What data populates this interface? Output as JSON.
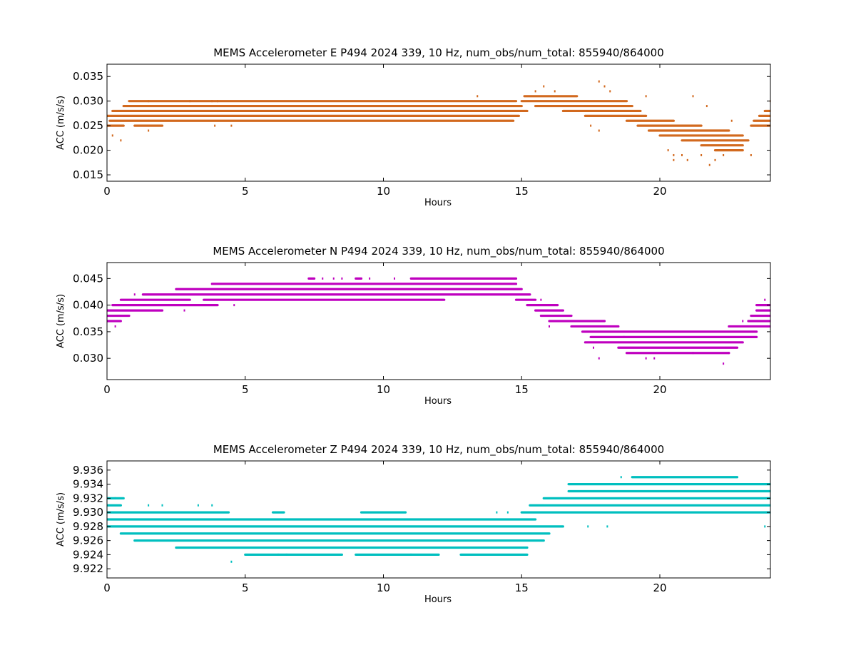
{
  "chart_data": [
    {
      "type": "scatter",
      "title": "MEMS Accelerometer E P494 2024 339, 10 Hz, num_obs/num_total: 855940/864000",
      "xlabel": "Hours",
      "ylabel": "ACC (m/s/s)",
      "xlim": [
        0,
        24
      ],
      "ylim": [
        0.0137,
        0.0375
      ],
      "xticks": [
        0,
        5,
        10,
        15,
        20
      ],
      "xtick_labels": [
        "0",
        "5",
        "10",
        "15",
        "20"
      ],
      "yticks": [
        0.015,
        0.02,
        0.025,
        0.03,
        0.035
      ],
      "ytick_labels": [
        "0.015",
        "0.020",
        "0.025",
        "0.030",
        "0.035"
      ],
      "color": "#d2691e",
      "grid": false,
      "series": [
        {
          "level_step": 0.001,
          "bands": [
            {
              "y": 0.03,
              "x": [
                [
                  0.8,
                  14.8
                ]
              ]
            },
            {
              "y": 0.029,
              "x": [
                [
                  0.6,
                  15.0
                ]
              ]
            },
            {
              "y": 0.028,
              "x": [
                [
                  0.2,
                  15.2
                ]
              ]
            },
            {
              "y": 0.027,
              "x": [
                [
                  0.0,
                  14.9
                ]
              ]
            },
            {
              "y": 0.026,
              "x": [
                [
                  0.1,
                  14.7
                ]
              ]
            },
            {
              "y": 0.025,
              "x": [
                [
                  0.0,
                  0.6
                ],
                [
                  1.0,
                  2.0
                ]
              ]
            },
            {
              "y": 0.031,
              "x": [
                [
                  15.1,
                  17.0
                ]
              ]
            },
            {
              "y": 0.03,
              "x": [
                [
                  15.0,
                  18.8
                ]
              ]
            },
            {
              "y": 0.029,
              "x": [
                [
                  15.5,
                  19.0
                ]
              ]
            },
            {
              "y": 0.028,
              "x": [
                [
                  16.5,
                  19.3
                ]
              ]
            },
            {
              "y": 0.027,
              "x": [
                [
                  17.3,
                  19.5
                ]
              ]
            },
            {
              "y": 0.026,
              "x": [
                [
                  18.8,
                  20.5
                ]
              ]
            },
            {
              "y": 0.025,
              "x": [
                [
                  19.2,
                  21.5
                ]
              ]
            },
            {
              "y": 0.024,
              "x": [
                [
                  19.6,
                  22.5
                ]
              ]
            },
            {
              "y": 0.023,
              "x": [
                [
                  20.0,
                  23.0
                ]
              ]
            },
            {
              "y": 0.022,
              "x": [
                [
                  20.8,
                  23.2
                ]
              ]
            },
            {
              "y": 0.021,
              "x": [
                [
                  21.5,
                  23.0
                ]
              ]
            },
            {
              "y": 0.02,
              "x": [
                [
                  22.0,
                  23.0
                ]
              ]
            },
            {
              "y": 0.025,
              "x": [
                [
                  23.3,
                  24.0
                ]
              ]
            },
            {
              "y": 0.026,
              "x": [
                [
                  23.4,
                  24.0
                ]
              ]
            },
            {
              "y": 0.027,
              "x": [
                [
                  23.6,
                  24.0
                ]
              ]
            },
            {
              "y": 0.028,
              "x": [
                [
                  23.8,
                  24.0
                ]
              ]
            }
          ],
          "scatter": [
            [
              0.2,
              0.023
            ],
            [
              0.5,
              0.022
            ],
            [
              1.5,
              0.03
            ],
            [
              1.5,
              0.024
            ],
            [
              3.0,
              0.03
            ],
            [
              3.8,
              0.03
            ],
            [
              4.0,
              0.03
            ],
            [
              3.9,
              0.025
            ],
            [
              4.5,
              0.025
            ],
            [
              13.4,
              0.031
            ],
            [
              15.5,
              0.032
            ],
            [
              15.8,
              0.033
            ],
            [
              16.2,
              0.032
            ],
            [
              17.8,
              0.034
            ],
            [
              18.0,
              0.033
            ],
            [
              17.8,
              0.024
            ],
            [
              17.5,
              0.025
            ],
            [
              18.2,
              0.032
            ],
            [
              19.5,
              0.031
            ],
            [
              20.3,
              0.02
            ],
            [
              20.5,
              0.019
            ],
            [
              20.5,
              0.018
            ],
            [
              20.8,
              0.019
            ],
            [
              21.0,
              0.018
            ],
            [
              21.2,
              0.031
            ],
            [
              21.5,
              0.019
            ],
            [
              21.8,
              0.017
            ],
            [
              21.7,
              0.029
            ],
            [
              22.0,
              0.018
            ],
            [
              22.3,
              0.019
            ],
            [
              22.6,
              0.026
            ],
            [
              23.3,
              0.019
            ],
            [
              24.0,
              0.03
            ]
          ]
        }
      ]
    },
    {
      "type": "scatter",
      "title": "MEMS Accelerometer N P494 2024 339, 10 Hz, num_obs/num_total: 855940/864000",
      "xlabel": "Hours",
      "ylabel": "ACC (m/s/s)",
      "xlim": [
        0,
        24
      ],
      "ylim": [
        0.026,
        0.048
      ],
      "xticks": [
        0,
        5,
        10,
        15,
        20
      ],
      "xtick_labels": [
        "0",
        "5",
        "10",
        "15",
        "20"
      ],
      "yticks": [
        0.03,
        0.035,
        0.04,
        0.045
      ],
      "ytick_labels": [
        "0.030",
        "0.035",
        "0.040",
        "0.045"
      ],
      "color": "#bf00bf",
      "grid": false,
      "series": [
        {
          "level_step": 0.001,
          "bands": [
            {
              "y": 0.045,
              "x": [
                [
                  7.3,
                  7.5
                ],
                [
                  9.0,
                  9.2
                ],
                [
                  11.0,
                  14.8
                ]
              ]
            },
            {
              "y": 0.044,
              "x": [
                [
                  3.8,
                  14.8
                ]
              ]
            },
            {
              "y": 0.043,
              "x": [
                [
                  2.5,
                  15.0
                ]
              ]
            },
            {
              "y": 0.042,
              "x": [
                [
                  1.3,
                  15.3
                ]
              ]
            },
            {
              "y": 0.041,
              "x": [
                [
                  0.5,
                  3.0
                ],
                [
                  3.5,
                  12.2
                ]
              ]
            },
            {
              "y": 0.041,
              "x": [
                [
                  14.8,
                  15.5
                ]
              ]
            },
            {
              "y": 0.04,
              "x": [
                [
                  0.2,
                  4.0
                ]
              ]
            },
            {
              "y": 0.04,
              "x": [
                [
                  15.2,
                  16.3
                ]
              ]
            },
            {
              "y": 0.039,
              "x": [
                [
                  0.0,
                  2.0
                ]
              ]
            },
            {
              "y": 0.039,
              "x": [
                [
                  15.5,
                  16.5
                ]
              ]
            },
            {
              "y": 0.038,
              "x": [
                [
                  0.0,
                  0.8
                ]
              ]
            },
            {
              "y": 0.038,
              "x": [
                [
                  15.7,
                  16.8
                ]
              ]
            },
            {
              "y": 0.037,
              "x": [
                [
                  0.0,
                  0.5
                ]
              ]
            },
            {
              "y": 0.037,
              "x": [
                [
                  16.0,
                  18.0
                ]
              ]
            },
            {
              "y": 0.036,
              "x": [
                [
                  16.8,
                  18.5
                ]
              ]
            },
            {
              "y": 0.035,
              "x": [
                [
                  17.2,
                  23.5
                ]
              ]
            },
            {
              "y": 0.034,
              "x": [
                [
                  17.5,
                  23.5
                ]
              ]
            },
            {
              "y": 0.033,
              "x": [
                [
                  17.3,
                  23.0
                ]
              ]
            },
            {
              "y": 0.032,
              "x": [
                [
                  18.5,
                  22.8
                ]
              ]
            },
            {
              "y": 0.031,
              "x": [
                [
                  18.8,
                  22.5
                ]
              ]
            },
            {
              "y": 0.036,
              "x": [
                [
                  22.5,
                  24.0
                ]
              ]
            },
            {
              "y": 0.037,
              "x": [
                [
                  23.2,
                  24.0
                ]
              ]
            },
            {
              "y": 0.038,
              "x": [
                [
                  23.3,
                  24.0
                ]
              ]
            },
            {
              "y": 0.039,
              "x": [
                [
                  23.5,
                  24.0
                ]
              ]
            },
            {
              "y": 0.04,
              "x": [
                [
                  23.5,
                  24.0
                ]
              ]
            }
          ],
          "scatter": [
            [
              0.3,
              0.036
            ],
            [
              1.0,
              0.042
            ],
            [
              2.8,
              0.039
            ],
            [
              4.6,
              0.04
            ],
            [
              7.8,
              0.045
            ],
            [
              8.2,
              0.045
            ],
            [
              8.5,
              0.045
            ],
            [
              9.5,
              0.045
            ],
            [
              10.4,
              0.045
            ],
            [
              15.7,
              0.041
            ],
            [
              16.3,
              0.037
            ],
            [
              16.0,
              0.036
            ],
            [
              17.6,
              0.032
            ],
            [
              17.8,
              0.03
            ],
            [
              18.7,
              0.034
            ],
            [
              19.5,
              0.03
            ],
            [
              19.8,
              0.03
            ],
            [
              21.2,
              0.031
            ],
            [
              22.3,
              0.029
            ],
            [
              22.5,
              0.031
            ],
            [
              23.0,
              0.037
            ],
            [
              23.8,
              0.041
            ]
          ]
        }
      ]
    },
    {
      "type": "scatter",
      "title": "MEMS Accelerometer Z P494 2024 339, 10 Hz, num_obs/num_total: 855940/864000",
      "xlabel": "Hours",
      "ylabel": "ACC (m/s/s)",
      "xlim": [
        0,
        24
      ],
      "ylim": [
        9.9207,
        9.9373
      ],
      "xticks": [
        0,
        5,
        10,
        15,
        20
      ],
      "xtick_labels": [
        "0",
        "5",
        "10",
        "15",
        "20"
      ],
      "yticks": [
        9.922,
        9.924,
        9.926,
        9.928,
        9.93,
        9.932,
        9.934,
        9.936
      ],
      "ytick_labels": [
        "9.922",
        "9.924",
        "9.926",
        "9.928",
        "9.930",
        "9.932",
        "9.934",
        "9.936"
      ],
      "color": "#00bfbf",
      "grid": false,
      "series": [
        {
          "level_step": 0.001,
          "bands": [
            {
              "y": 9.932,
              "x": [
                [
                  0.0,
                  0.6
                ]
              ]
            },
            {
              "y": 9.931,
              "x": [
                [
                  0.0,
                  0.5
                ]
              ]
            },
            {
              "y": 9.93,
              "x": [
                [
                  0.0,
                  4.4
                ],
                [
                  6.0,
                  6.4
                ],
                [
                  9.2,
                  10.8
                ]
              ]
            },
            {
              "y": 9.929,
              "x": [
                [
                  0.0,
                  15.5
                ]
              ]
            },
            {
              "y": 9.928,
              "x": [
                [
                  0.0,
                  16.5
                ]
              ]
            },
            {
              "y": 9.927,
              "x": [
                [
                  0.5,
                  16.0
                ]
              ]
            },
            {
              "y": 9.926,
              "x": [
                [
                  1.0,
                  15.8
                ]
              ]
            },
            {
              "y": 9.925,
              "x": [
                [
                  2.5,
                  15.2
                ]
              ]
            },
            {
              "y": 9.924,
              "x": [
                [
                  5.0,
                  8.5
                ],
                [
                  9.0,
                  12.0
                ],
                [
                  12.8,
                  15.2
                ]
              ]
            },
            {
              "y": 9.93,
              "x": [
                [
                  15.0,
                  24.0
                ]
              ]
            },
            {
              "y": 9.931,
              "x": [
                [
                  15.3,
                  24.0
                ]
              ]
            },
            {
              "y": 9.932,
              "x": [
                [
                  15.8,
                  24.0
                ]
              ]
            },
            {
              "y": 9.933,
              "x": [
                [
                  16.7,
                  24.0
                ]
              ]
            },
            {
              "y": 9.934,
              "x": [
                [
                  16.7,
                  24.0
                ]
              ]
            },
            {
              "y": 9.935,
              "x": [
                [
                  19.0,
                  22.8
                ]
              ]
            }
          ],
          "scatter": [
            [
              0.3,
              9.932
            ],
            [
              1.5,
              9.931
            ],
            [
              2.0,
              9.931
            ],
            [
              3.3,
              9.931
            ],
            [
              3.8,
              9.931
            ],
            [
              4.5,
              9.923
            ],
            [
              6.2,
              9.924
            ],
            [
              6.5,
              9.924
            ],
            [
              11.0,
              9.924
            ],
            [
              14.1,
              9.93
            ],
            [
              14.5,
              9.93
            ],
            [
              17.4,
              9.928
            ],
            [
              18.1,
              9.928
            ],
            [
              18.6,
              9.935
            ],
            [
              23.8,
              9.928
            ]
          ]
        }
      ]
    }
  ]
}
